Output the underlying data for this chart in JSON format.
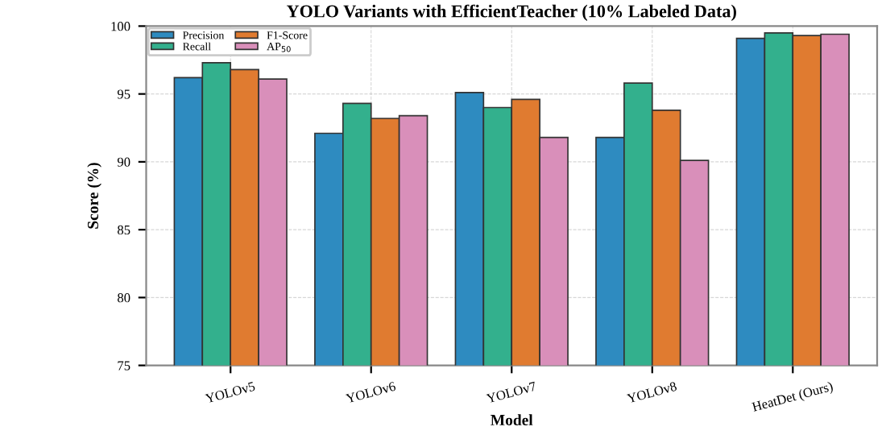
{
  "chart_data": {
    "type": "bar",
    "title": "YOLO Variants with EfficientTeacher (10% Labeled Data)",
    "xlabel": "Model",
    "ylabel": "Score (%)",
    "categories": [
      "YOLOv5",
      "YOLOv6",
      "YOLOv7",
      "YOLOv8",
      "HeatDet (Ours)"
    ],
    "series": [
      {
        "name": "Precision",
        "color": "#2e8bc0",
        "values": [
          96.2,
          92.1,
          95.1,
          91.8,
          99.1
        ]
      },
      {
        "name": "Recall",
        "color": "#33b08d",
        "values": [
          97.3,
          94.3,
          94.0,
          95.8,
          99.5
        ]
      },
      {
        "name": "F1-Score",
        "color": "#e07b30",
        "values": [
          96.8,
          93.2,
          94.6,
          93.8,
          99.3
        ]
      },
      {
        "name": "AP$_{50}$",
        "color": "#d98fba",
        "values": [
          96.1,
          93.4,
          91.8,
          90.1,
          99.4
        ]
      }
    ],
    "ylim": [
      75,
      100
    ],
    "yticks": [
      75,
      80,
      85,
      90,
      95,
      100
    ],
    "grid": true,
    "legend": "top left"
  }
}
